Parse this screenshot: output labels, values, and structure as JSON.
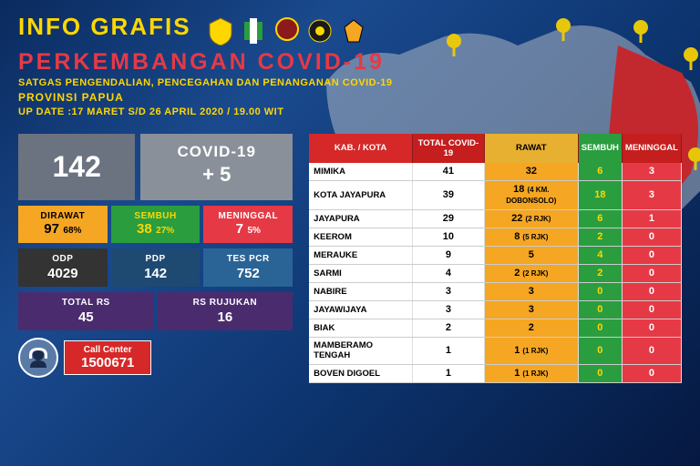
{
  "header": {
    "title1": "INFO GRAFIS",
    "title2": "PERKEMBANGAN COVID-19",
    "subtitle": "SATGAS PENGENDALIAN, PENCEGAHAN DAN PENANGANAN COVID-19",
    "province": "PROVINSI PAPUA",
    "update": "UP DATE :17 MARET S/D 26 APRIL 2020 / 19.00 WIT"
  },
  "summary": {
    "total": "142",
    "covid_label": "COVID-19",
    "delta": "+ 5"
  },
  "stats": {
    "dirawat": {
      "label": "DIRAWAT",
      "value": "97",
      "pct": "68%"
    },
    "sembuh": {
      "label": "SEMBUH",
      "value": "38",
      "pct": "27%"
    },
    "meninggal": {
      "label": "MENINGGAL",
      "value": "7",
      "pct": "5%"
    },
    "odp": {
      "label": "ODP",
      "value": "4029"
    },
    "pdp": {
      "label": "PDP",
      "value": "142"
    },
    "pcr": {
      "label": "TES PCR",
      "value": "752"
    },
    "rs": {
      "label": "TOTAL RS",
      "value": "45"
    },
    "rujukan": {
      "label": "RS RUJUKAN",
      "value": "16"
    }
  },
  "call": {
    "label": "Call Center",
    "number": "1500671"
  },
  "table": {
    "headers": {
      "kab": "KAB. / KOTA",
      "total": "TOTAL COVID-19",
      "rawat": "RAWAT",
      "sembuh": "SEMBUH",
      "meninggal": "MENINGGAL"
    },
    "rows": [
      {
        "name": "MIMIKA",
        "total": "41",
        "rawat": "32",
        "sembuh": "6",
        "mening": "3"
      },
      {
        "name": "KOTA JAYAPURA",
        "total": "39",
        "rawat": "18 (4 KM. DOBONSOLO)",
        "sembuh": "18",
        "mening": "3"
      },
      {
        "name": "JAYAPURA",
        "total": "29",
        "rawat": "22 (2 RJK)",
        "sembuh": "6",
        "mening": "1"
      },
      {
        "name": "KEEROM",
        "total": "10",
        "rawat": "8 (5 RJK)",
        "sembuh": "2",
        "mening": "0"
      },
      {
        "name": "MERAUKE",
        "total": "9",
        "rawat": "5",
        "sembuh": "4",
        "mening": "0"
      },
      {
        "name": "SARMI",
        "total": "4",
        "rawat": "2 (2 RJK)",
        "sembuh": "2",
        "mening": "0"
      },
      {
        "name": "NABIRE",
        "total": "3",
        "rawat": "3",
        "sembuh": "0",
        "mening": "0"
      },
      {
        "name": "JAYAWIJAYA",
        "total": "3",
        "rawat": "3",
        "sembuh": "0",
        "mening": "0"
      },
      {
        "name": "BIAK",
        "total": "2",
        "rawat": "2",
        "sembuh": "0",
        "mening": "0"
      },
      {
        "name": "MAMBERAMO TENGAH",
        "total": "1",
        "rawat": "1 (1 RJK)",
        "sembuh": "0",
        "mening": "0"
      },
      {
        "name": "BOVEN DIGOEL",
        "total": "1",
        "rawat": "1 (1 RJK)",
        "sembuh": "0",
        "mening": "0"
      }
    ]
  },
  "colors": {
    "bg_grad_start": "#0a2a5e",
    "gold": "#ffd700",
    "red": "#e63946",
    "orange": "#f5a623",
    "green": "#2a9d3f"
  }
}
